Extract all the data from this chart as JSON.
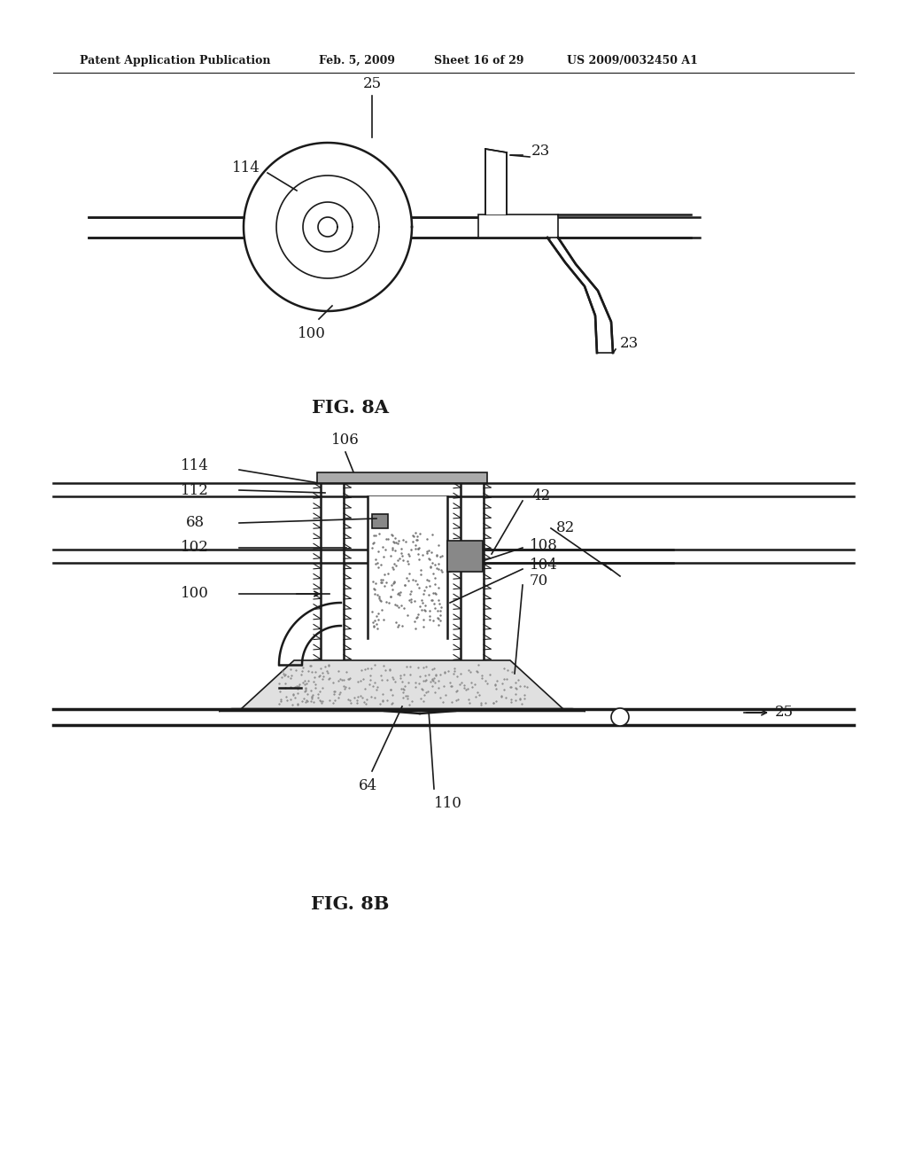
{
  "background_color": "#ffffff",
  "line_color": "#1a1a1a",
  "header_text": "Patent Application Publication",
  "header_date": "Feb. 5, 2009",
  "header_sheet": "Sheet 16 of 29",
  "header_patent": "US 2009/0032450 A1",
  "fig8a_label": "FIG. 8A",
  "fig8b_label": "FIG. 8B"
}
